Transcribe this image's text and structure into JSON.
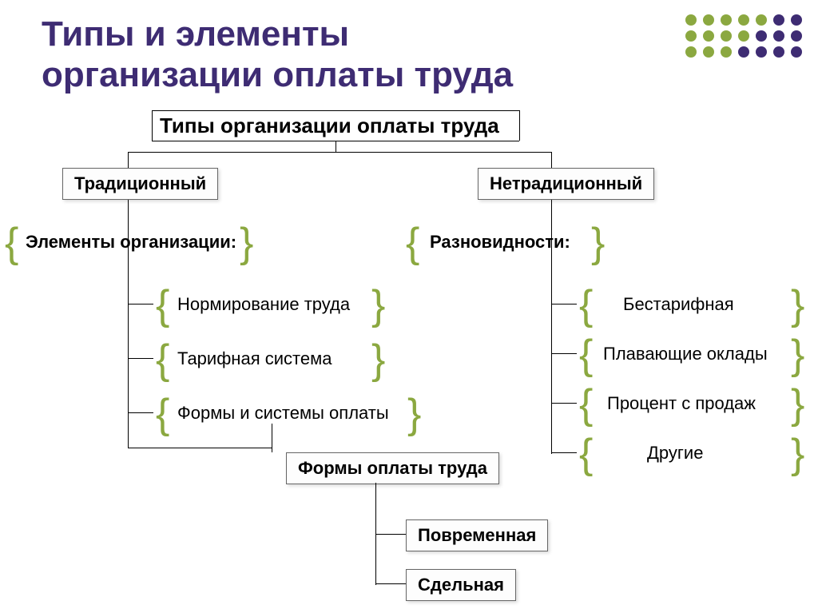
{
  "colors": {
    "title": "#3e2c73",
    "brace": "#8ba840",
    "dots_row1": [
      "#8ba840",
      "#8ba840",
      "#8ba840",
      "#8ba840",
      "#8ba840",
      "#3e2c73",
      "#3e2c73"
    ],
    "dots_row2": [
      "#8ba840",
      "#8ba840",
      "#8ba840",
      "#8ba840",
      "#3e2c73",
      "#3e2c73",
      "#3e2c73"
    ],
    "dots_row3": [
      "#8ba840",
      "#8ba840",
      "#8ba840",
      "#3e2c73",
      "#3e2c73",
      "#3e2c73",
      "#3e2c73"
    ],
    "text": "#000000",
    "box_border": "#666666"
  },
  "title_line1": "Типы и элементы",
  "title_line2": "организации оплаты труда",
  "subtitle": "Типы организации оплаты труда",
  "type_left": "Традиционный",
  "type_right": "Нетрадиционный",
  "section_left": "Элементы организации:",
  "section_right": "Разновидности:",
  "left_items": {
    "i1": "Нормирование труда",
    "i2": "Тарифная система",
    "i3": "Формы и системы оплаты"
  },
  "right_items": {
    "i1": "Бестарифная",
    "i2": "Плавающие оклады",
    "i3": "Процент с продаж",
    "i4": "Другие"
  },
  "forms_box": "Формы оплаты труда",
  "form1": "Повременная",
  "form2": "Сдельная"
}
